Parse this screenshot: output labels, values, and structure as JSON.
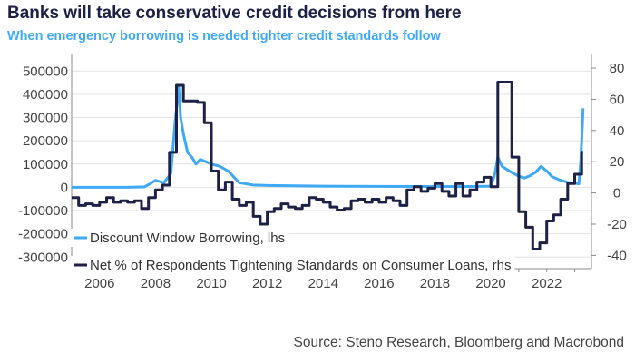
{
  "header": {
    "title": "Banks will take conservative credit decisions from here",
    "subtitle": "When emergency borrowing is needed tighter credit standards follow"
  },
  "footer": {
    "source": "Source: Steno Research, Bloomberg and Macrobond"
  },
  "colors": {
    "title": "#1d2145",
    "subtitle": "#3fa9f5",
    "series_lhs": "#3fa9f5",
    "series_rhs": "#1d2145",
    "grid": "#e3e3e3"
  },
  "chart_data": {
    "type": "line",
    "title": "Banks will take conservative credit decisions from here",
    "subtitle": "When emergency borrowing is needed tighter credit standards follow",
    "xlim": [
      2005.0,
      2023.6
    ],
    "x_ticks": [
      2006,
      2008,
      2010,
      2012,
      2014,
      2016,
      2018,
      2020,
      2022
    ],
    "y_left": {
      "lim": [
        -330000,
        540000
      ],
      "ticks": [
        -300000,
        -200000,
        -100000,
        0,
        100000,
        200000,
        300000,
        400000,
        500000
      ]
    },
    "y_right": {
      "lim": [
        -45.6,
        84.1
      ],
      "ticks": [
        -40,
        -20,
        0,
        20,
        40,
        60,
        80
      ]
    },
    "grid": true,
    "legend_position": "bottom-left",
    "series": [
      {
        "name": "Discount Window Borrowing, lhs",
        "axis": "left",
        "style": "line",
        "points": [
          [
            2005.0,
            0
          ],
          [
            2007.0,
            0
          ],
          [
            2007.6,
            2000
          ],
          [
            2007.8,
            15000
          ],
          [
            2008.0,
            30000
          ],
          [
            2008.3,
            20000
          ],
          [
            2008.55,
            60000
          ],
          [
            2008.7,
            280000
          ],
          [
            2008.83,
            430000
          ],
          [
            2008.9,
            300000
          ],
          [
            2009.0,
            230000
          ],
          [
            2009.15,
            150000
          ],
          [
            2009.3,
            130000
          ],
          [
            2009.45,
            100000
          ],
          [
            2009.6,
            120000
          ],
          [
            2009.8,
            110000
          ],
          [
            2010.0,
            100000
          ],
          [
            2010.3,
            90000
          ],
          [
            2010.6,
            70000
          ],
          [
            2010.8,
            45000
          ],
          [
            2011.0,
            20000
          ],
          [
            2011.5,
            10000
          ],
          [
            2012.0,
            8000
          ],
          [
            2014.0,
            5000
          ],
          [
            2016.0,
            4000
          ],
          [
            2019.0,
            3000
          ],
          [
            2020.0,
            5000
          ],
          [
            2020.15,
            60000
          ],
          [
            2020.25,
            130000
          ],
          [
            2020.4,
            90000
          ],
          [
            2020.6,
            75000
          ],
          [
            2020.8,
            60000
          ],
          [
            2021.0,
            48000
          ],
          [
            2021.2,
            40000
          ],
          [
            2021.4,
            50000
          ],
          [
            2021.6,
            65000
          ],
          [
            2021.8,
            90000
          ],
          [
            2022.0,
            70000
          ],
          [
            2022.2,
            45000
          ],
          [
            2022.5,
            30000
          ],
          [
            2022.8,
            20000
          ],
          [
            2023.0,
            18000
          ],
          [
            2023.15,
            15000
          ],
          [
            2023.22,
            120000
          ],
          [
            2023.3,
            340000
          ]
        ]
      },
      {
        "name": "Net % of Respondents Tightening Standards on Consumer Loans, rhs",
        "axis": "right",
        "style": "step",
        "points": [
          [
            2005.0,
            -3
          ],
          [
            2005.25,
            -8
          ],
          [
            2005.5,
            -7
          ],
          [
            2005.75,
            -8
          ],
          [
            2006.0,
            -6
          ],
          [
            2006.25,
            -3
          ],
          [
            2006.5,
            -6
          ],
          [
            2006.75,
            -5
          ],
          [
            2007.0,
            -6
          ],
          [
            2007.25,
            -5
          ],
          [
            2007.5,
            -10
          ],
          [
            2007.75,
            -3
          ],
          [
            2008.0,
            2
          ],
          [
            2008.25,
            5
          ],
          [
            2008.5,
            26
          ],
          [
            2008.75,
            69
          ],
          [
            2009.0,
            59
          ],
          [
            2009.25,
            59
          ],
          [
            2009.5,
            58
          ],
          [
            2009.75,
            45
          ],
          [
            2010.0,
            14
          ],
          [
            2010.25,
            2
          ],
          [
            2010.5,
            7
          ],
          [
            2010.75,
            -4
          ],
          [
            2011.0,
            -8
          ],
          [
            2011.25,
            -6
          ],
          [
            2011.5,
            -15
          ],
          [
            2011.75,
            -20
          ],
          [
            2012.0,
            -12
          ],
          [
            2012.25,
            -10
          ],
          [
            2012.5,
            -7
          ],
          [
            2012.75,
            -9
          ],
          [
            2013.0,
            -10
          ],
          [
            2013.25,
            -8
          ],
          [
            2013.5,
            -3
          ],
          [
            2013.75,
            -4
          ],
          [
            2014.0,
            -6
          ],
          [
            2014.25,
            -9
          ],
          [
            2014.5,
            -11
          ],
          [
            2014.75,
            -10
          ],
          [
            2015.0,
            -5
          ],
          [
            2015.25,
            -4
          ],
          [
            2015.5,
            -6
          ],
          [
            2015.75,
            -4
          ],
          [
            2016.0,
            -6
          ],
          [
            2016.25,
            -3
          ],
          [
            2016.5,
            -5
          ],
          [
            2016.75,
            -8
          ],
          [
            2017.0,
            2
          ],
          [
            2017.25,
            4
          ],
          [
            2017.5,
            1
          ],
          [
            2017.75,
            3
          ],
          [
            2018.0,
            6
          ],
          [
            2018.25,
            1
          ],
          [
            2018.5,
            -2
          ],
          [
            2018.75,
            6
          ],
          [
            2019.0,
            -2
          ],
          [
            2019.25,
            2
          ],
          [
            2019.5,
            7
          ],
          [
            2019.75,
            10
          ],
          [
            2020.0,
            4
          ],
          [
            2020.25,
            71
          ],
          [
            2020.5,
            71
          ],
          [
            2020.75,
            23
          ],
          [
            2021.0,
            -12
          ],
          [
            2021.25,
            -22
          ],
          [
            2021.5,
            -36
          ],
          [
            2021.75,
            -32
          ],
          [
            2022.0,
            -18
          ],
          [
            2022.25,
            -14
          ],
          [
            2022.5,
            -4
          ],
          [
            2022.75,
            6
          ],
          [
            2023.0,
            12
          ],
          [
            2023.25,
            26
          ]
        ]
      }
    ]
  }
}
